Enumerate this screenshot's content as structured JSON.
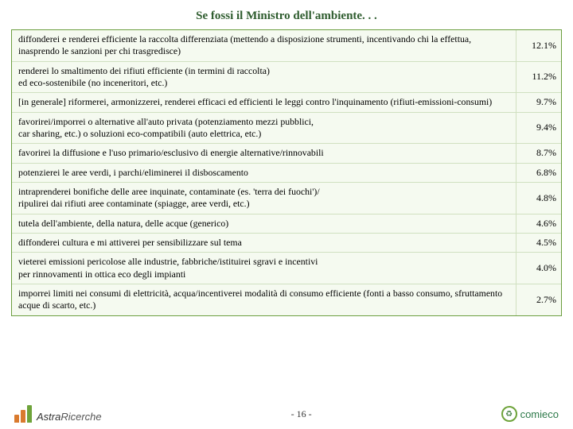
{
  "title": "Se fossi il Ministro dell'ambiente. . .",
  "rows": [
    {
      "text": "diffonderei e renderei efficiente la raccolta differenziata (mettendo a disposizione strumenti, incentivando chi la effettua, inasprendo le sanzioni per chi trasgredisce)",
      "value": "12.1%"
    },
    {
      "text": "renderei lo smaltimento dei rifiuti efficiente (in termini di raccolta)\ned eco-sostenibile (no inceneritori, etc.)",
      "value": "11.2%"
    },
    {
      "text": "[in generale] riformerei, armonizzerei, renderei efficaci ed efficienti le leggi contro l'inquinamento (rifiuti-emissioni-consumi)",
      "value": "9.7%"
    },
    {
      "text": "favorirei/imporrei o alternative all'auto privata (potenziamento mezzi pubblici,\ncar sharing, etc.) o soluzioni eco-compatibili (auto elettrica, etc.)",
      "value": "9.4%"
    },
    {
      "text": "favorirei la diffusione e l'uso primario/esclusivo di energie alternative/rinnovabili",
      "value": "8.7%"
    },
    {
      "text": "potenzierei le aree verdi, i parchi/eliminerei il disboscamento",
      "value": "6.8%"
    },
    {
      "text": "intraprenderei bonifiche delle aree inquinate, contaminate (es. 'terra dei fuochi')/\nripulirei dai rifiuti aree contaminate (spiagge, aree verdi, etc.)",
      "value": "4.8%"
    },
    {
      "text": "tutela dell'ambiente, della natura, delle acque (generico)",
      "value": "4.6%"
    },
    {
      "text": "diffonderei cultura e mi attiverei per sensibilizzare sul tema",
      "value": "4.5%"
    },
    {
      "text": "vieterei emissioni pericolose alle industrie, fabbriche/istituirei sgravi e incentivi\nper rinnovamenti in ottica eco degli impianti",
      "value": "4.0%"
    },
    {
      "text": "imporrei limiti nei consumi di elettricità, acqua/incentiverei modalità di consumo efficiente (fonti a basso consumo, sfruttamento acque di scarto, etc.)",
      "value": "2.7%"
    }
  ],
  "footer": {
    "left_logo_text": "Ricerche",
    "left_logo_prefix": "Astra",
    "page_number": "- 16 -",
    "right_logo_text": "comieco"
  },
  "colors": {
    "title": "#2e5c2e",
    "table_border": "#6b9e3f",
    "table_bg": "#f5faf0",
    "row_border": "#d0e0c0",
    "bar_orange": "#d97a2e",
    "bar_green": "#6ea33a",
    "right_logo": "#2e7a4a"
  }
}
